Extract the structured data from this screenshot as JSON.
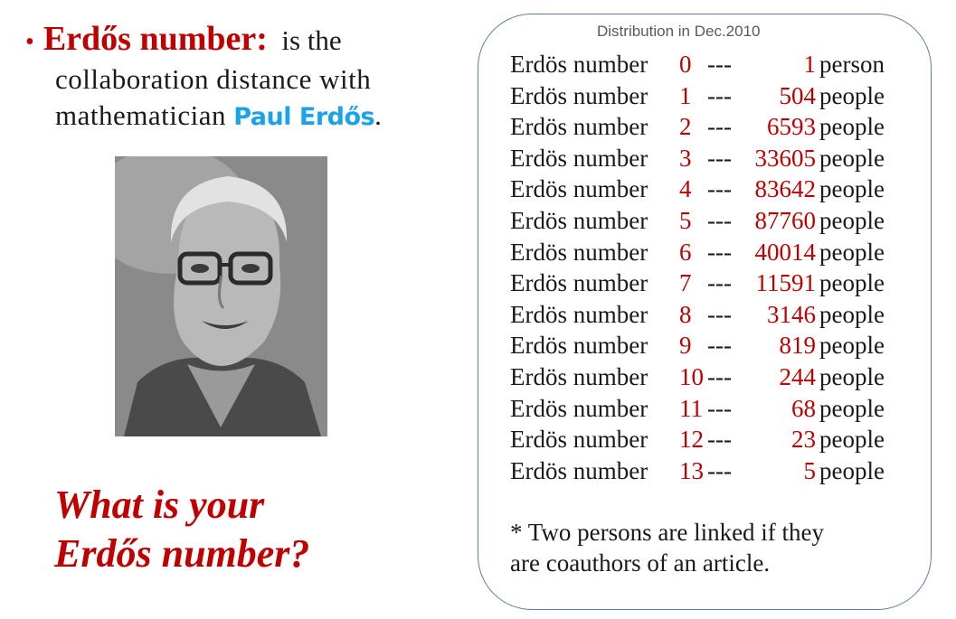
{
  "left": {
    "bullet": "•",
    "term": "Erdős number:",
    "def_line1": "is the",
    "def_line2": "collaboration distance with",
    "def_line3_pre": "mathematician",
    "def_name": "Paul Erdős",
    "def_end": ".",
    "question_line1": "What is your",
    "question_line2": "Erdős number?"
  },
  "panel": {
    "title": "Distribution in Dec.2010",
    "rows": [
      {
        "label": "Erdös number",
        "n": "0",
        "dash": "---",
        "count": "1",
        "unit": "person"
      },
      {
        "label": "Erdös number",
        "n": "1",
        "dash": "---",
        "count": "504",
        "unit": "people"
      },
      {
        "label": "Erdös number",
        "n": "2",
        "dash": "---",
        "count": "6593",
        "unit": "people"
      },
      {
        "label": "Erdös number",
        "n": "3",
        "dash": "---",
        "count": "33605",
        "unit": "people"
      },
      {
        "label": "Erdös number",
        "n": "4",
        "dash": "---",
        "count": "83642",
        "unit": "people"
      },
      {
        "label": "Erdös number",
        "n": "5",
        "dash": "---",
        "count": "87760",
        "unit": "people"
      },
      {
        "label": "Erdös number",
        "n": "6",
        "dash": "---",
        "count": "40014",
        "unit": "people"
      },
      {
        "label": "Erdös number",
        "n": "7",
        "dash": "---",
        "count": "11591",
        "unit": "people"
      },
      {
        "label": "Erdös number",
        "n": "8",
        "dash": "---",
        "count": "3146",
        "unit": "people"
      },
      {
        "label": "Erdös number",
        "n": "9",
        "dash": "---",
        "count": "819",
        "unit": "people"
      },
      {
        "label": "Erdös number",
        "n": "10",
        "dash": "---",
        "count": "244",
        "unit": "people"
      },
      {
        "label": "Erdös number",
        "n": "11",
        "dash": "---",
        "count": "68",
        "unit": "people"
      },
      {
        "label": "Erdös number",
        "n": "12",
        "dash": "---",
        "count": "23",
        "unit": "people"
      },
      {
        "label": "Erdös number",
        "n": "13",
        "dash": "---",
        "count": "5",
        "unit": "people"
      }
    ],
    "footnote_line1": "* Two persons are linked if they",
    "footnote_line2": "are coauthors of an article."
  },
  "colors": {
    "accent_red": "#c00000",
    "name_blue": "#1aa3e8",
    "panel_border": "#5b7fa6"
  }
}
